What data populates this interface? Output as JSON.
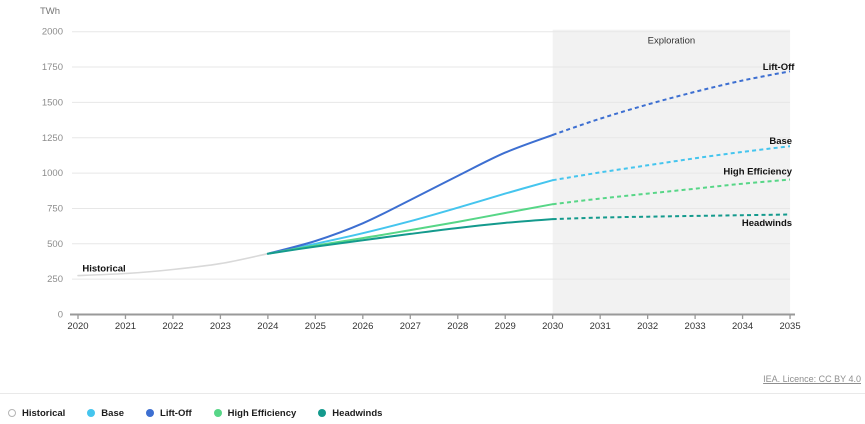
{
  "chart_data": {
    "type": "line",
    "unit_label": "TWh",
    "ylim": [
      0,
      2000
    ],
    "yticks": [
      0,
      250,
      500,
      750,
      1000,
      1250,
      1500,
      1750,
      2000
    ],
    "xticks": [
      2020,
      2021,
      2022,
      2023,
      2024,
      2025,
      2026,
      2027,
      2028,
      2029,
      2030,
      2031,
      2032,
      2033,
      2034,
      2035
    ],
    "grid": true,
    "band": {
      "label": "Exploration",
      "x_start": 2030,
      "x_end": 2035,
      "color": "#f2f2f2"
    },
    "series": [
      {
        "name": "Historical",
        "color": "#d9d9d9",
        "width": 1.6,
        "x": [
          2020,
          2021,
          2022,
          2023,
          2024
        ],
        "values": [
          275,
          290,
          318,
          360,
          430
        ],
        "label": {
          "text": "Historical",
          "x": 2020.05,
          "value": 305,
          "anchor": "start"
        }
      },
      {
        "name": "Base",
        "color": "#45c5ee",
        "width": 2,
        "dash_from": 2030,
        "x": [
          2024,
          2025,
          2026,
          2027,
          2028,
          2029,
          2030,
          2031,
          2032,
          2033,
          2034,
          2035
        ],
        "values": [
          430,
          500,
          575,
          660,
          755,
          855,
          950,
          1005,
          1055,
          1105,
          1150,
          1190
        ],
        "label": {
          "text": "Base",
          "x": 2035,
          "value": 1205,
          "anchor": "end"
        }
      },
      {
        "name": "Lift-Off",
        "color": "#3d6fd1",
        "width": 2,
        "dash_from": 2030,
        "x": [
          2024,
          2025,
          2026,
          2027,
          2028,
          2029,
          2030,
          2031,
          2032,
          2033,
          2034,
          2035
        ],
        "values": [
          430,
          520,
          645,
          810,
          980,
          1145,
          1270,
          1385,
          1485,
          1575,
          1655,
          1720
        ],
        "label": {
          "text": "Lift-Off",
          "x": 2035.05,
          "value": 1730,
          "anchor": "end"
        }
      },
      {
        "name": "High Efficiency",
        "color": "#57d687",
        "width": 2,
        "dash_from": 2030,
        "x": [
          2024,
          2025,
          2026,
          2027,
          2028,
          2029,
          2030,
          2031,
          2032,
          2033,
          2034,
          2035
        ],
        "values": [
          430,
          487,
          540,
          597,
          655,
          718,
          780,
          820,
          855,
          890,
          925,
          955
        ],
        "label": {
          "text": "High Efficiency",
          "x": 2035,
          "value": 990,
          "anchor": "end"
        }
      },
      {
        "name": "Headwinds",
        "color": "#149a8d",
        "width": 2,
        "dash_from": 2030,
        "x": [
          2024,
          2025,
          2026,
          2027,
          2028,
          2029,
          2030,
          2031,
          2032,
          2033,
          2034,
          2035
        ],
        "values": [
          430,
          480,
          525,
          570,
          612,
          648,
          675,
          685,
          692,
          697,
          702,
          707
        ],
        "label": {
          "text": "Headwinds",
          "x": 2035,
          "value": 625,
          "anchor": "end"
        }
      }
    ],
    "colors": {
      "grid": "#e7e7e7",
      "axis": "#999999",
      "y_tick_text": "#8c8c8c",
      "x_tick_text": "#333333",
      "unit_text": "#757575",
      "band_text": "#333333",
      "series_label_text": "#111111"
    }
  },
  "legend": {
    "items": [
      {
        "label": "Historical",
        "color": "#ffffff",
        "ring": "#b5b5b5"
      },
      {
        "label": "Base",
        "color": "#45c5ee"
      },
      {
        "label": "Lift-Off",
        "color": "#3d6fd1"
      },
      {
        "label": "High Efficiency",
        "color": "#57d687"
      },
      {
        "label": "Headwinds",
        "color": "#149a8d"
      }
    ]
  },
  "footer": {
    "licence": "IEA. Licence: CC BY 4.0"
  }
}
